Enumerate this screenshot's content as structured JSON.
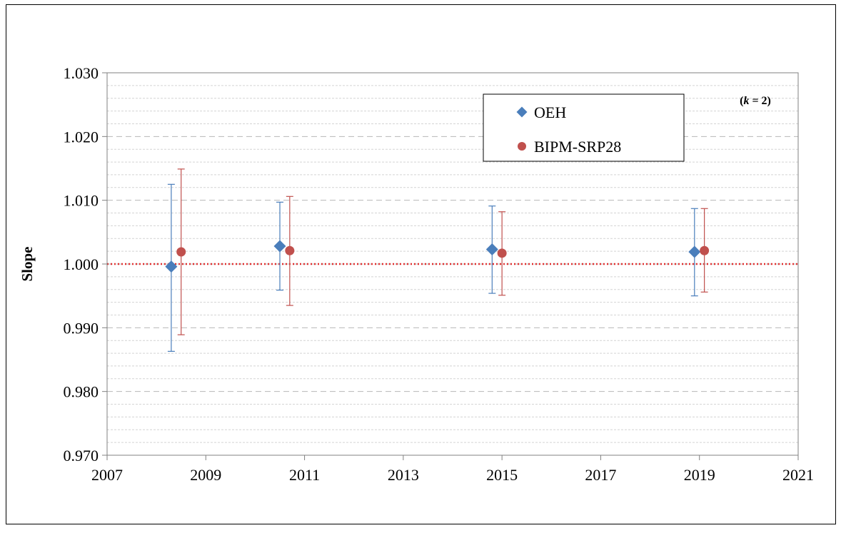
{
  "chart_data": {
    "type": "scatter",
    "title": "",
    "xlabel": "",
    "ylabel": "Slope",
    "xlim": [
      2007,
      2021
    ],
    "ylim": [
      0.97,
      1.03
    ],
    "xticks": [
      2007,
      2009,
      2011,
      2013,
      2015,
      2017,
      2019,
      2021
    ],
    "xtick_labels": [
      "2007",
      "2009",
      "2011",
      "2013",
      "2015",
      "2017",
      "2019",
      "2021"
    ],
    "yticks": [
      0.97,
      0.98,
      0.99,
      1.0,
      1.01,
      1.02,
      1.03
    ],
    "ytick_labels": [
      "0.970",
      "0.980",
      "0.990",
      "1.000",
      "1.010",
      "1.020",
      "1.030"
    ],
    "grid": true,
    "reference_line": {
      "y": 1.0,
      "style": "dotted",
      "color": "#e03030"
    },
    "annotation_k": {
      "prefix": "(",
      "var": "k",
      "suffix": " = 2)"
    },
    "legend": {
      "placement": "top-right"
    },
    "series": [
      {
        "name": "OEH",
        "marker": "diamond",
        "color": "#4a7ebb",
        "points": [
          {
            "x": 2008.3,
            "y": 0.9996,
            "lo": 0.9863,
            "hi": 1.0125
          },
          {
            "x": 2010.5,
            "y": 1.0028,
            "lo": 0.9959,
            "hi": 1.0097
          },
          {
            "x": 2014.8,
            "y": 1.0023,
            "lo": 0.9954,
            "hi": 1.0091
          },
          {
            "x": 2018.9,
            "y": 1.0019,
            "lo": 0.995,
            "hi": 1.0087
          }
        ]
      },
      {
        "name": "BIPM-SRP28",
        "marker": "circle",
        "color": "#c0504d",
        "points": [
          {
            "x": 2008.5,
            "y": 1.0019,
            "lo": 0.9889,
            "hi": 1.0149
          },
          {
            "x": 2010.7,
            "y": 1.0021,
            "lo": 0.9935,
            "hi": 1.0106
          },
          {
            "x": 2015.0,
            "y": 1.0017,
            "lo": 0.9951,
            "hi": 1.0082
          },
          {
            "x": 2019.1,
            "y": 1.0021,
            "lo": 0.9956,
            "hi": 1.0087
          }
        ]
      }
    ]
  }
}
